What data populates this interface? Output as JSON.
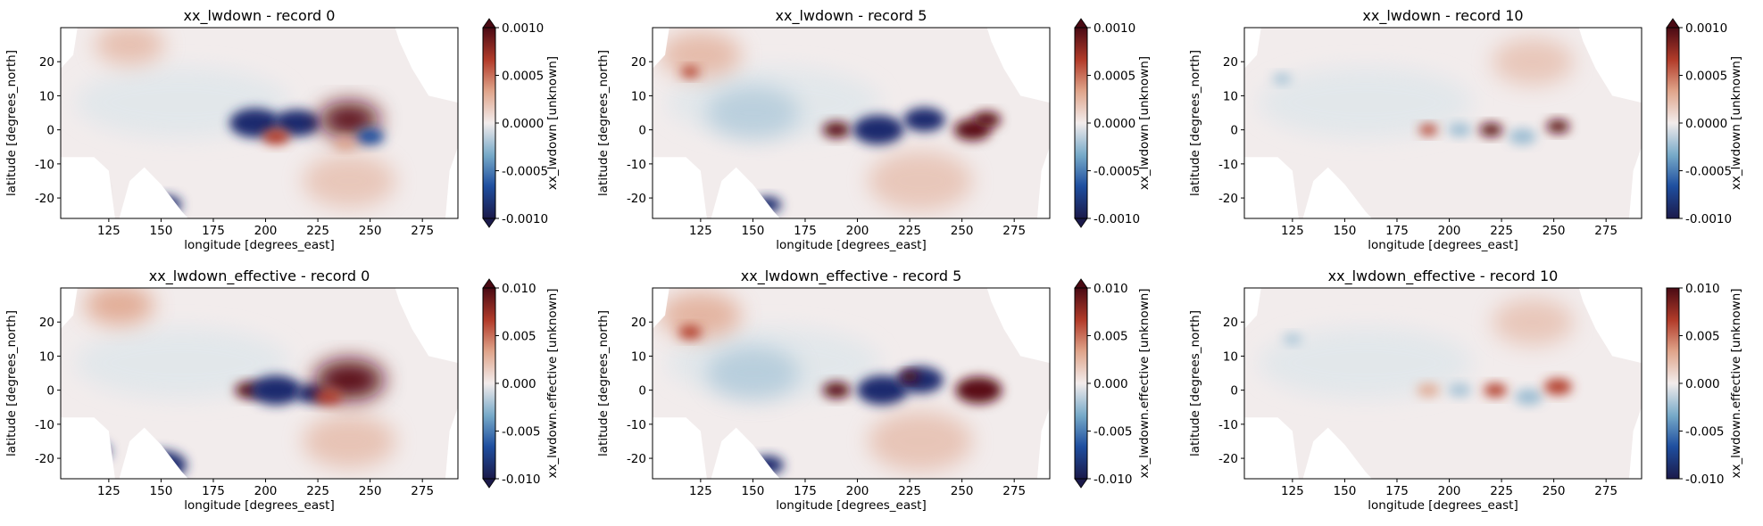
{
  "chart_data": [
    {
      "type": "heatmap",
      "title": "xx_lwdown - record 0",
      "xlabel": "longitude [degrees_east]",
      "ylabel": "latitude [degrees_north]",
      "colorbar_label": "xx_lwdown [unknown]",
      "xlim": [
        102,
        292
      ],
      "ylim": [
        -26,
        30
      ],
      "x_ticks": [
        "125",
        "150",
        "175",
        "200",
        "225",
        "250",
        "275"
      ],
      "y_ticks": [
        "-20",
        "-10",
        "0",
        "10",
        "20"
      ],
      "clim": [
        -0.001,
        0.001
      ],
      "colorbar_ticks": [
        "-0.0010",
        "-0.0005",
        "0.0000",
        "0.0005",
        "0.0010"
      ],
      "colorbar_extend": "both",
      "colormap": [
        "#1b1a4a",
        "#1f4fa0",
        "#76a9c8",
        "#f2ecec",
        "#dfa389",
        "#b23c2a",
        "#4a0a14"
      ]
    },
    {
      "type": "heatmap",
      "title": "xx_lwdown - record 5",
      "xlabel": "longitude [degrees_east]",
      "ylabel": "latitude [degrees_north]",
      "colorbar_label": "xx_lwdown [unknown]",
      "xlim": [
        102,
        292
      ],
      "ylim": [
        -26,
        30
      ],
      "x_ticks": [
        "125",
        "150",
        "175",
        "200",
        "225",
        "250",
        "275"
      ],
      "y_ticks": [
        "-20",
        "-10",
        "0",
        "10",
        "20"
      ],
      "clim": [
        -0.001,
        0.001
      ],
      "colorbar_ticks": [
        "-0.0010",
        "-0.0005",
        "0.0000",
        "0.0005",
        "0.0010"
      ],
      "colorbar_extend": "both",
      "colormap": [
        "#1b1a4a",
        "#1f4fa0",
        "#76a9c8",
        "#f2ecec",
        "#dfa389",
        "#b23c2a",
        "#4a0a14"
      ]
    },
    {
      "type": "heatmap",
      "title": "xx_lwdown - record 10",
      "xlabel": "longitude [degrees_east]",
      "ylabel": "latitude [degrees_north]",
      "colorbar_label": "xx_lwdown [unknown]",
      "xlim": [
        102,
        292
      ],
      "ylim": [
        -26,
        30
      ],
      "x_ticks": [
        "125",
        "150",
        "175",
        "200",
        "225",
        "250",
        "275"
      ],
      "y_ticks": [
        "-20",
        "-10",
        "0",
        "10",
        "20"
      ],
      "clim": [
        -0.001,
        0.001
      ],
      "colorbar_ticks": [
        "-0.0010",
        "-0.0005",
        "0.0000",
        "0.0005",
        "0.0010"
      ],
      "colorbar_extend": "top",
      "colormap": [
        "#1b1a4a",
        "#1f4fa0",
        "#76a9c8",
        "#f2ecec",
        "#dfa389",
        "#b23c2a",
        "#4a0a14"
      ]
    },
    {
      "type": "heatmap",
      "title": "xx_lwdown_effective - record 0",
      "xlabel": "longitude [degrees_east]",
      "ylabel": "latitude [degrees_north]",
      "colorbar_label": "xx_lwdown.effective [unknown]",
      "xlim": [
        102,
        292
      ],
      "ylim": [
        -26,
        30
      ],
      "x_ticks": [
        "125",
        "150",
        "175",
        "200",
        "225",
        "250",
        "275"
      ],
      "y_ticks": [
        "-20",
        "-10",
        "0",
        "10",
        "20"
      ],
      "clim": [
        -0.01,
        0.01
      ],
      "colorbar_ticks": [
        "-0.010",
        "-0.005",
        "0.000",
        "0.005",
        "0.010"
      ],
      "colorbar_extend": "both",
      "colormap": [
        "#1b1a4a",
        "#1f4fa0",
        "#76a9c8",
        "#f2ecec",
        "#dfa389",
        "#b23c2a",
        "#4a0a14"
      ]
    },
    {
      "type": "heatmap",
      "title": "xx_lwdown_effective - record 5",
      "xlabel": "longitude [degrees_east]",
      "ylabel": "latitude [degrees_north]",
      "colorbar_label": "xx_lwdown.effective [unknown]",
      "xlim": [
        102,
        292
      ],
      "ylim": [
        -26,
        30
      ],
      "x_ticks": [
        "125",
        "150",
        "175",
        "200",
        "225",
        "250",
        "275"
      ],
      "y_ticks": [
        "-20",
        "-10",
        "0",
        "10",
        "20"
      ],
      "clim": [
        -0.01,
        0.01
      ],
      "colorbar_ticks": [
        "-0.010",
        "-0.005",
        "0.000",
        "0.005",
        "0.010"
      ],
      "colorbar_extend": "both",
      "colormap": [
        "#1b1a4a",
        "#1f4fa0",
        "#76a9c8",
        "#f2ecec",
        "#dfa389",
        "#b23c2a",
        "#4a0a14"
      ]
    },
    {
      "type": "heatmap",
      "title": "xx_lwdown_effective - record 10",
      "xlabel": "longitude [degrees_east]",
      "ylabel": "latitude [degrees_north]",
      "colorbar_label": "xx_lwdown.effective [unknown]",
      "xlim": [
        102,
        292
      ],
      "ylim": [
        -26,
        30
      ],
      "x_ticks": [
        "125",
        "150",
        "175",
        "200",
        "225",
        "250",
        "275"
      ],
      "y_ticks": [
        "-20",
        "-10",
        "0",
        "10",
        "20"
      ],
      "clim": [
        -0.01,
        0.01
      ],
      "colorbar_ticks": [
        "-0.010",
        "-0.005",
        "0.000",
        "0.005",
        "0.010"
      ],
      "colorbar_extend": "none",
      "colormap": [
        "#1b1a4a",
        "#1f4fa0",
        "#76a9c8",
        "#f2ecec",
        "#dfa389",
        "#b23c2a",
        "#4a0a14"
      ]
    }
  ]
}
